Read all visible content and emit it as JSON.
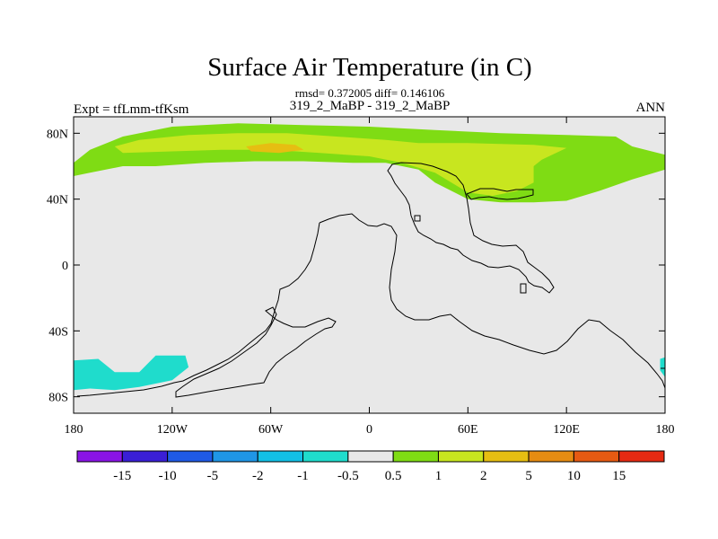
{
  "chart_data": {
    "type": "heatmap",
    "title": "Surface Air Temperature (in C)",
    "stats_line": "rmsd= 0.372005 diff= 0.146106",
    "left_label": "Expt = tfLmm-tfKsm",
    "center_label": "319_2_MaBP - 319_2_MaBP",
    "right_label": "ANN",
    "x_range": [
      -180,
      180
    ],
    "y_range": [
      -90,
      90
    ],
    "x_ticks": [
      {
        "value": -180,
        "label": "180"
      },
      {
        "value": -120,
        "label": "120W"
      },
      {
        "value": -60,
        "label": "60W"
      },
      {
        "value": 0,
        "label": "0"
      },
      {
        "value": 60,
        "label": "60E"
      },
      {
        "value": 120,
        "label": "120E"
      },
      {
        "value": 180,
        "label": "180"
      }
    ],
    "y_ticks": [
      {
        "value": 80,
        "label": "80N"
      },
      {
        "value": 40,
        "label": "40N"
      },
      {
        "value": 0,
        "label": "0"
      },
      {
        "value": -40,
        "label": "40S"
      },
      {
        "value": -80,
        "label": "80S"
      }
    ],
    "colorbar": {
      "labels": [
        "-15",
        "-10",
        "-5",
        "-2",
        "-1",
        "-0.5",
        "0.5",
        "1",
        "2",
        "5",
        "10",
        "15"
      ],
      "colors": [
        "#8a14e6",
        "#3a1fd6",
        "#1f5ae6",
        "#1f96e6",
        "#12c0e6",
        "#1fdccc",
        "#e8e8e8",
        "#7fdc14",
        "#c8e61f",
        "#e6be12",
        "#e68c12",
        "#e65a12",
        "#e62a12"
      ]
    },
    "contour_regions": [
      {
        "level": "0.5 to 1",
        "color": "#7fdc14",
        "region": "northern high latitudes",
        "polygon": [
          [
            -180,
            62
          ],
          [
            -170,
            70
          ],
          [
            -150,
            78
          ],
          [
            -120,
            84
          ],
          [
            -80,
            86
          ],
          [
            -40,
            85
          ],
          [
            0,
            84
          ],
          [
            40,
            82
          ],
          [
            80,
            80
          ],
          [
            120,
            79
          ],
          [
            150,
            78
          ],
          [
            160,
            72
          ],
          [
            180,
            67
          ],
          [
            180,
            58
          ],
          [
            160,
            52
          ],
          [
            140,
            45
          ],
          [
            120,
            39
          ],
          [
            100,
            38
          ],
          [
            80,
            38
          ],
          [
            60,
            40
          ],
          [
            50,
            45
          ],
          [
            40,
            50
          ],
          [
            30,
            58
          ],
          [
            10,
            62
          ],
          [
            -10,
            62
          ],
          [
            -40,
            63
          ],
          [
            -70,
            63
          ],
          [
            -100,
            62
          ],
          [
            -130,
            60
          ],
          [
            -150,
            60
          ],
          [
            -170,
            56
          ],
          [
            -180,
            54
          ]
        ]
      },
      {
        "level": "1 to 2",
        "color": "#c8e61f",
        "region": "northern high latitudes",
        "polygon": [
          [
            -155,
            72
          ],
          [
            -140,
            76
          ],
          [
            -110,
            79
          ],
          [
            -80,
            80
          ],
          [
            -50,
            80
          ],
          [
            -20,
            78
          ],
          [
            10,
            76
          ],
          [
            30,
            74
          ],
          [
            60,
            74
          ],
          [
            100,
            73
          ],
          [
            120,
            71
          ],
          [
            105,
            64
          ],
          [
            100,
            60
          ],
          [
            100,
            50
          ],
          [
            90,
            45
          ],
          [
            75,
            42
          ],
          [
            60,
            44
          ],
          [
            50,
            50
          ],
          [
            40,
            56
          ],
          [
            20,
            62
          ],
          [
            0,
            66
          ],
          [
            -30,
            68
          ],
          [
            -60,
            70
          ],
          [
            -90,
            70
          ],
          [
            -120,
            69
          ],
          [
            -150,
            68
          ]
        ]
      },
      {
        "level": "2 to 5",
        "color": "#e6be12",
        "region": "northern high latitudes",
        "polygon": [
          [
            -75,
            72
          ],
          [
            -60,
            74
          ],
          [
            -45,
            73
          ],
          [
            -40,
            70
          ],
          [
            -55,
            68
          ],
          [
            -72,
            69
          ]
        ]
      },
      {
        "level": "-1 to -0.5",
        "color": "#1fdccc",
        "region": "Antarctica",
        "polygon": [
          [
            -180,
            -58
          ],
          [
            -165,
            -57
          ],
          [
            -155,
            -65
          ],
          [
            -140,
            -65
          ],
          [
            -130,
            -55
          ],
          [
            -112,
            -55
          ],
          [
            -110,
            -62
          ],
          [
            -120,
            -70
          ],
          [
            -140,
            -74
          ],
          [
            -155,
            -76
          ],
          [
            -170,
            -75
          ],
          [
            -180,
            -76
          ]
        ]
      },
      {
        "level": "-1 to -0.5",
        "color": "#1fdccc",
        "region": "Antarctica",
        "polygon": [
          [
            177,
            -57
          ],
          [
            180,
            -56
          ],
          [
            180,
            -68
          ],
          [
            177,
            -64
          ]
        ]
      }
    ]
  }
}
